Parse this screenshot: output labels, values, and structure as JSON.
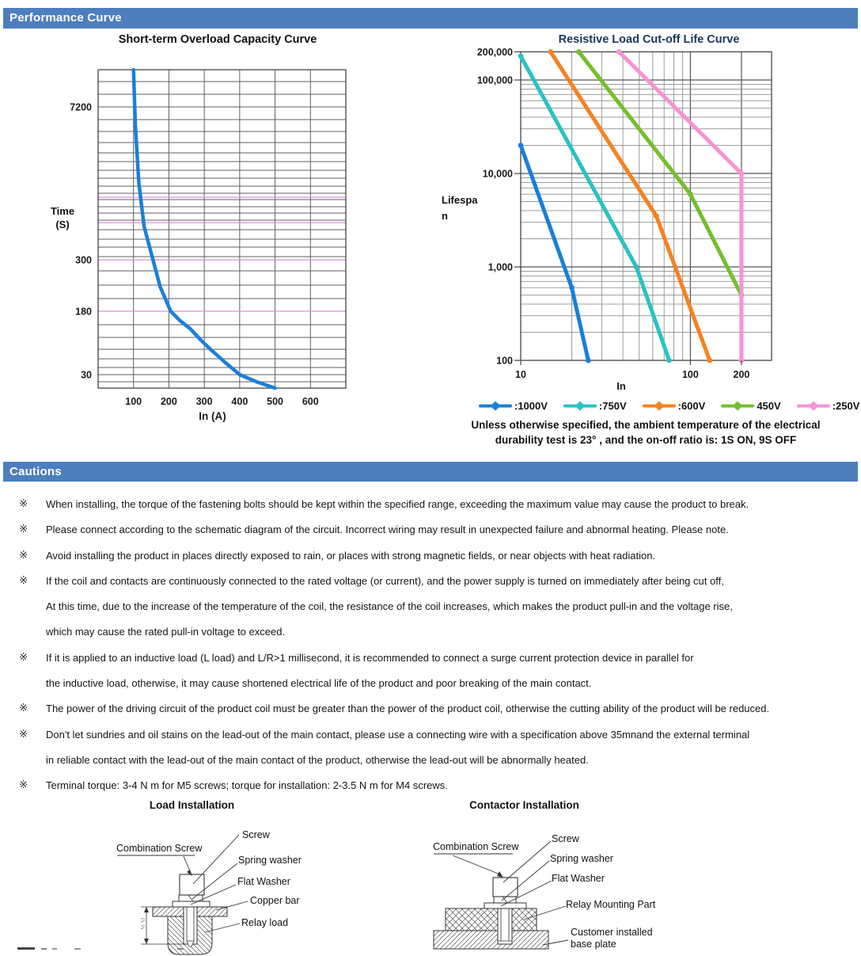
{
  "sections": {
    "performance_title": "Performance Curve",
    "cautions_title": "Cautions"
  },
  "chart1": {
    "title": "Short-term Overload Capacity Curve",
    "ylabel_line1": "Time",
    "ylabel_line2": "(S)",
    "xlabel": "In (A)"
  },
  "chart2": {
    "title": "Resistive Load Cut-off Life Curve",
    "ylabel": "Lifespan",
    "xlabel": "In"
  },
  "chart_data": [
    {
      "type": "line",
      "title": "Short-term Overload Capacity Curve",
      "xlabel": "In (A)",
      "ylabel": "Time (S)",
      "x_ticks": [
        100,
        200,
        300,
        400,
        500,
        600
      ],
      "y_ticks": [
        7200,
        300,
        180,
        30
      ],
      "xlim": [
        0,
        700
      ],
      "grid": true,
      "y_scale": "log-like (compressed, nonlinear)",
      "reference_lines": {
        "color": "#df8ede",
        "values": [
          1100,
          650,
          300,
          180
        ]
      },
      "series": [
        {
          "name": "overload-capacity",
          "color": "#1b7fd8",
          "points": [
            [
              100,
              20000
            ],
            [
              105,
              5000
            ],
            [
              115,
              1500
            ],
            [
              130,
              600
            ],
            [
              155,
              300
            ],
            [
              175,
              230
            ],
            [
              205,
              180
            ],
            [
              230,
              140
            ],
            [
              260,
              110
            ],
            [
              290,
              80
            ],
            [
              320,
              60
            ],
            [
              360,
              42
            ],
            [
              400,
              30
            ],
            [
              450,
              24
            ],
            [
              500,
              20
            ]
          ]
        }
      ]
    },
    {
      "type": "line",
      "title": "Resistive Load Cut-off Life Curve",
      "xlabel": "In",
      "ylabel": "Lifespan",
      "x_scale": "log",
      "y_scale": "log",
      "xlim": [
        10,
        300
      ],
      "ylim": [
        100,
        200000
      ],
      "x_ticks": [
        10,
        100,
        200
      ],
      "y_ticks": [
        200000,
        100000,
        10000,
        1000,
        100
      ],
      "grid": true,
      "legend_position": "bottom",
      "series": [
        {
          "name": ":1000V",
          "color": "#1b7fd8",
          "points": [
            [
              10,
              20000
            ],
            [
              20,
              600
            ],
            [
              25,
              100
            ]
          ]
        },
        {
          "name": ":750V",
          "color": "#29c2c2",
          "points": [
            [
              10,
              180000
            ],
            [
              48,
              1000
            ],
            [
              75,
              100
            ]
          ]
        },
        {
          "name": ":600V",
          "color": "#f5821f",
          "points": [
            [
              15,
              200000
            ],
            [
              63,
              3500
            ],
            [
              130,
              100
            ]
          ]
        },
        {
          "name": "450V",
          "color": "#74bf2e",
          "points": [
            [
              22,
              200000
            ],
            [
              100,
              6000
            ],
            [
              200,
              500
            ]
          ]
        },
        {
          "name": ":250V",
          "color": "#f792d6",
          "points": [
            [
              38,
              200000
            ],
            [
              200,
              10000
            ],
            [
              200,
              100
            ]
          ]
        }
      ]
    }
  ],
  "legend": {
    "items": [
      {
        "label": ":1000V",
        "color": "#1b7fd8"
      },
      {
        "label": ":750V",
        "color": "#29c2c2"
      },
      {
        "label": ":600V",
        "color": "#f5821f"
      },
      {
        "label": "450V",
        "color": "#74bf2e"
      },
      {
        "label": ":250V",
        "color": "#f792d6"
      }
    ]
  },
  "footnote": {
    "line1": "Unless otherwise specified, the ambient temperature of the electrical",
    "line2": "durability test is 23° , and the on-off ratio is: 1S ON, 9S OFF"
  },
  "cautions": {
    "marker": "※",
    "items": [
      {
        "lines": [
          "When installing, the torque of the fastening bolts should be kept within the specified range, exceeding the maximum value may cause the product to break."
        ]
      },
      {
        "lines": [
          "Please connect according to the schematic diagram of the circuit. Incorrect wiring may result in unexpected failure and abnormal heating. Please note."
        ]
      },
      {
        "lines": [
          "Avoid installing the product in places directly exposed to rain, or places with strong magnetic fields, or near objects with heat radiation."
        ]
      },
      {
        "lines": [
          "If the coil and contacts are continuously connected to the rated voltage (or current), and the power supply is turned on immediately after being cut off,",
          "At this time, due to the increase of the temperature of the coil, the resistance of the coil increases, which makes the product pull-in and the voltage rise,",
          "which may cause the rated pull-in voltage to exceed."
        ]
      },
      {
        "lines": [
          "If it is applied to an inductive load (L load) and L/R>1 millisecond, it is recommended to connect a surge current protection device in parallel for",
          "the inductive load, otherwise, it may cause shortened electrical life of the product and poor breaking of the main contact."
        ]
      },
      {
        "lines": [
          "The power of the driving circuit of the product coil must be greater than the power of the product coil, otherwise the cutting ability of the product will be reduced."
        ]
      },
      {
        "lines": [
          "Don't let sundries and oil stains on the lead-out of the main contact, please use a connecting wire with a specification above 35mnand the external terminal",
          "in reliable contact with the lead-out of the main contact of the product, otherwise the lead-out will be abnormally heated."
        ]
      },
      {
        "lines": [
          "Terminal torque: 3-4 N m for M5 screws; torque for installation: 2-3.5 N m for M4 screws."
        ]
      }
    ]
  },
  "diagrams": {
    "load": {
      "title": "Load Installation",
      "labels": {
        "combination_screw": "Combination Screw",
        "screw": "Screw",
        "spring_washer": "Spring washer",
        "flat_washer": "Flat Washer",
        "copper_bar": "Copper bar",
        "relay_load": "Relay load"
      }
    },
    "contactor": {
      "title": "Contactor Installation",
      "labels": {
        "combination_screw": "Combination Screw",
        "screw": "Screw",
        "spring_washer": "Spring washer",
        "flat_washer": "Flat Washer",
        "relay_mounting_part": "Relay Mounting Part",
        "customer_base_plate": "Customer installed base plate"
      }
    }
  }
}
